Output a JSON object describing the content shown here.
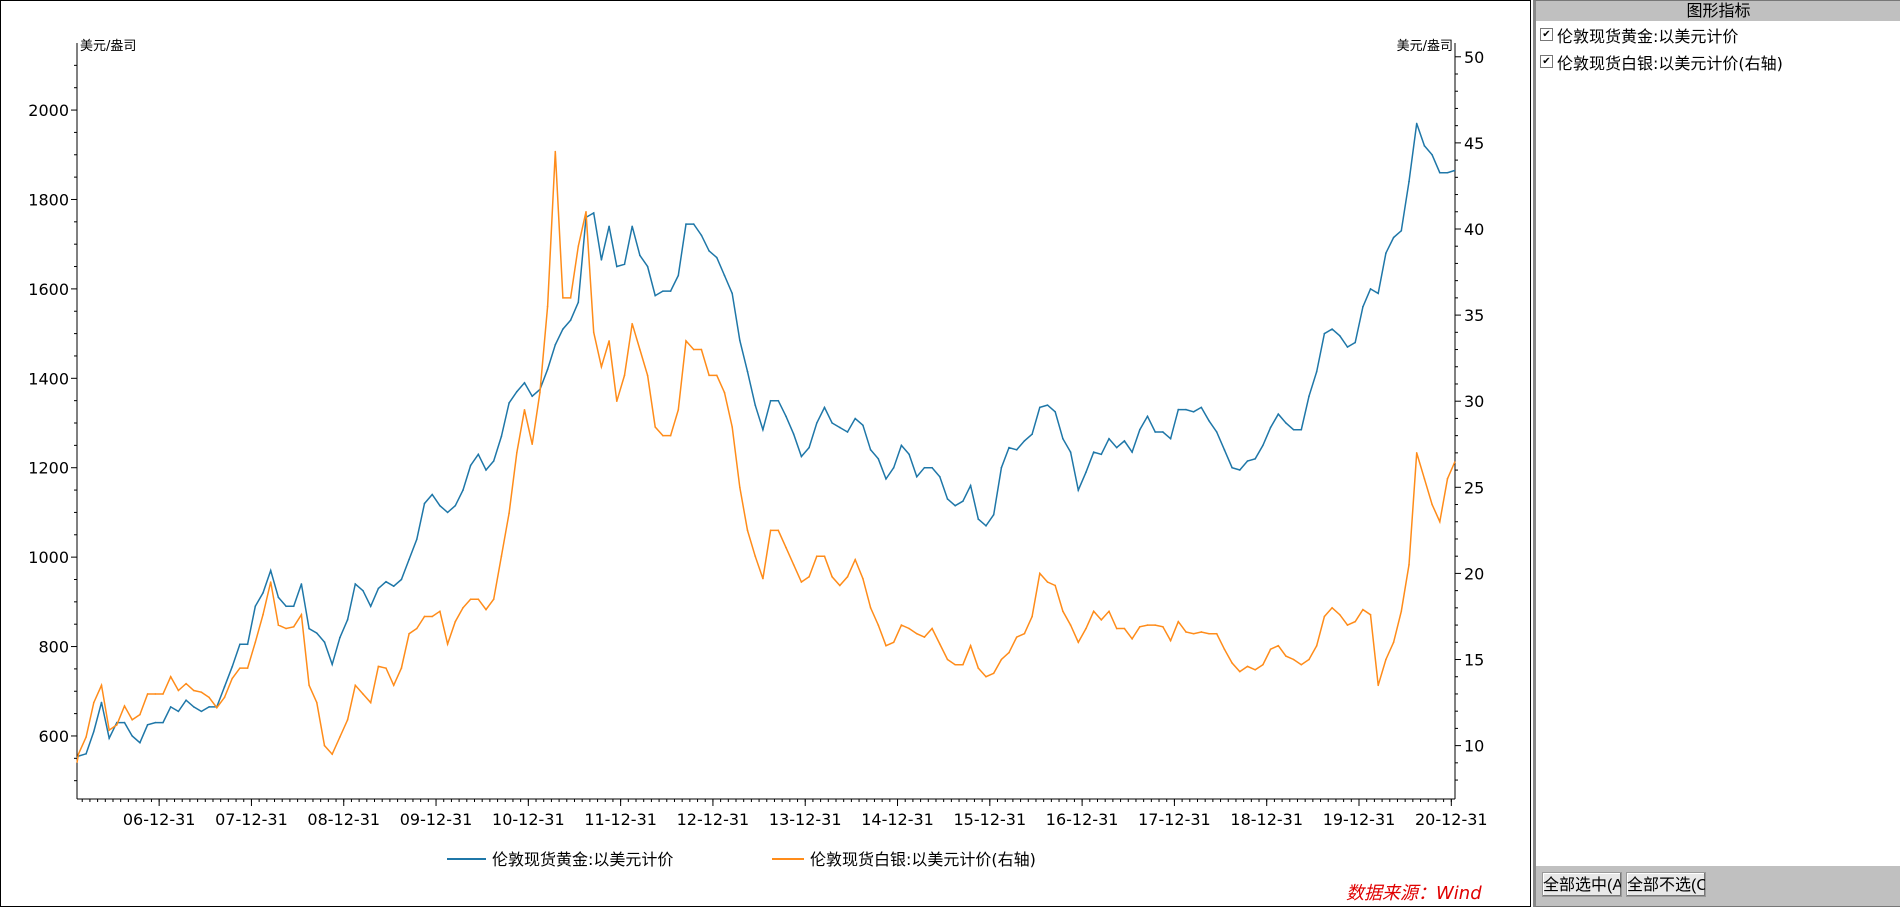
{
  "panel": {
    "title": "图形指标",
    "items": [
      {
        "label": "伦敦现货黄金:以美元计价",
        "checked": true
      },
      {
        "label": "伦敦现货白银:以美元计价(右轴)",
        "checked": true
      }
    ],
    "select_all": "全部选中(A",
    "select_none": "全部不选(C"
  },
  "source": "数据来源：Wind",
  "chart_data": {
    "type": "line",
    "left_unit": "美元/盎司",
    "right_unit": "美元/盎司",
    "left_ylim": [
      459,
      2150
    ],
    "right_ylim": [
      6.9,
      50.8
    ],
    "left_ticks": [
      "600",
      "800",
      "1000",
      "1200",
      "1400",
      "1600",
      "1800",
      "2000"
    ],
    "right_ticks": [
      "10",
      "15",
      "20",
      "25",
      "30",
      "35",
      "40",
      "45",
      "50"
    ],
    "x_ticks": [
      "06-12-31",
      "07-12-31",
      "08-12-31",
      "09-12-31",
      "10-12-31",
      "11-12-31",
      "12-12-31",
      "13-12-31",
      "14-12-31",
      "15-12-31",
      "16-12-31",
      "17-12-31",
      "18-12-31",
      "19-12-31",
      "20-12-31"
    ],
    "xlim": [
      2006.11,
      2021.04
    ],
    "x_start": "2006-01",
    "x_step": "month",
    "series": [
      {
        "name": "伦敦现货黄金:以美元计价",
        "axis": "left",
        "color": "#1f77a8",
        "values": [
          550,
          555,
          560,
          610,
          675,
          595,
          630,
          630,
          600,
          585,
          625,
          630,
          630,
          665,
          655,
          680,
          665,
          655,
          665,
          665,
          710,
          755,
          805,
          805,
          890,
          920,
          970,
          910,
          890,
          890,
          940,
          840,
          830,
          810,
          760,
          820,
          860,
          940,
          925,
          890,
          930,
          945,
          935,
          950,
          995,
          1040,
          1120,
          1140,
          1115,
          1100,
          1115,
          1150,
          1205,
          1230,
          1195,
          1215,
          1270,
          1345,
          1370,
          1390,
          1360,
          1375,
          1420,
          1475,
          1510,
          1530,
          1570,
          1760,
          1770,
          1665,
          1740,
          1650,
          1655,
          1740,
          1675,
          1650,
          1585,
          1595,
          1595,
          1630,
          1745,
          1745,
          1720,
          1685,
          1670,
          1630,
          1590,
          1485,
          1415,
          1340,
          1285,
          1350,
          1350,
          1315,
          1275,
          1225,
          1245,
          1300,
          1335,
          1300,
          1290,
          1280,
          1310,
          1295,
          1240,
          1220,
          1175,
          1200,
          1250,
          1230,
          1180,
          1200,
          1200,
          1180,
          1130,
          1115,
          1125,
          1160,
          1085,
          1070,
          1095,
          1200,
          1245,
          1240,
          1260,
          1275,
          1335,
          1340,
          1325,
          1265,
          1235,
          1150,
          1190,
          1235,
          1230,
          1265,
          1245,
          1260,
          1235,
          1285,
          1315,
          1280,
          1280,
          1265,
          1330,
          1330,
          1325,
          1335,
          1305,
          1280,
          1240,
          1200,
          1195,
          1215,
          1220,
          1250,
          1290,
          1320,
          1300,
          1285,
          1285,
          1360,
          1415,
          1500,
          1510,
          1495,
          1470,
          1480,
          1560,
          1600,
          1590,
          1680,
          1715,
          1730,
          1840,
          1970,
          1920,
          1900,
          1860,
          1860,
          1865
        ]
      },
      {
        "name": "伦敦现货白银:以美元计价(右轴)",
        "axis": "right",
        "color": "#ff8c1a",
        "values": [
          9.0,
          9.5,
          10.5,
          12.5,
          13.5,
          10.9,
          11.2,
          12.3,
          11.5,
          11.8,
          13.0,
          13.0,
          13.0,
          14.0,
          13.2,
          13.6,
          13.2,
          13.1,
          12.8,
          12.2,
          12.8,
          13.9,
          14.5,
          14.5,
          16.0,
          17.6,
          19.5,
          17.0,
          16.8,
          16.9,
          17.6,
          13.5,
          12.5,
          10.0,
          9.5,
          10.5,
          11.5,
          13.5,
          13.0,
          12.5,
          14.6,
          14.5,
          13.5,
          14.5,
          16.5,
          16.8,
          17.5,
          17.5,
          17.8,
          15.9,
          17.2,
          18.0,
          18.5,
          18.5,
          17.9,
          18.5,
          21.0,
          23.5,
          27.0,
          29.5,
          27.5,
          30.5,
          35.5,
          44.5,
          36.0,
          36.0,
          39.0,
          41.0,
          34.0,
          32.0,
          33.5,
          30.0,
          31.5,
          34.5,
          33.0,
          31.5,
          28.5,
          28.0,
          28.0,
          29.5,
          33.5,
          33.0,
          33.0,
          31.5,
          31.5,
          30.5,
          28.5,
          25.0,
          22.5,
          21.0,
          19.7,
          22.5,
          22.5,
          21.5,
          20.5,
          19.5,
          19.8,
          21.0,
          21.0,
          19.8,
          19.3,
          19.8,
          20.8,
          19.7,
          18.0,
          17.0,
          15.8,
          16.0,
          17.0,
          16.8,
          16.5,
          16.3,
          16.8,
          15.9,
          15.0,
          14.7,
          14.7,
          15.8,
          14.5,
          14.0,
          14.2,
          15.0,
          15.4,
          16.3,
          16.5,
          17.5,
          20.0,
          19.5,
          19.3,
          17.8,
          17.0,
          16.0,
          16.8,
          17.8,
          17.3,
          17.8,
          16.8,
          16.8,
          16.2,
          16.9,
          17.0,
          17.0,
          16.9,
          16.1,
          17.2,
          16.6,
          16.5,
          16.6,
          16.5,
          16.5,
          15.6,
          14.8,
          14.3,
          14.6,
          14.4,
          14.7,
          15.6,
          15.8,
          15.2,
          15.0,
          14.7,
          15.0,
          15.8,
          17.5,
          18.0,
          17.6,
          17.0,
          17.2,
          17.9,
          17.6,
          13.5,
          15.0,
          16.0,
          17.8,
          20.5,
          27.0,
          25.5,
          24.0,
          23.0,
          25.5,
          26.5
        ]
      }
    ],
    "legend": "bottom"
  }
}
